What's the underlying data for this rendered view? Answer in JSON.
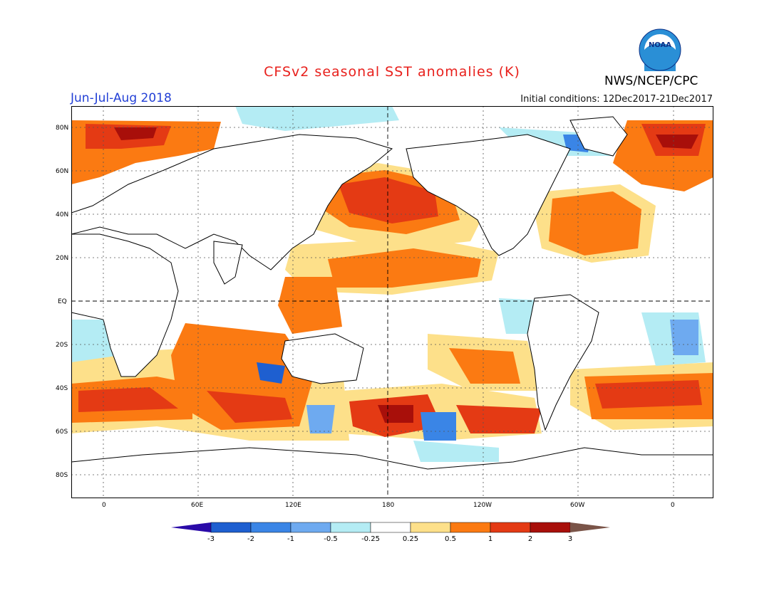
{
  "header": {
    "title": "CFSv2 seasonal SST anomalies (K)",
    "season": "Jun-Jul-Aug 2018",
    "initial_conditions": "Initial conditions: 12Dec2017-21Dec2017",
    "agency": "NWS/NCEP/CPC",
    "logo_text": "NOAA"
  },
  "axes": {
    "lat_labels": [
      "80N",
      "60N",
      "40N",
      "20N",
      "EQ",
      "20S",
      "40S",
      "60S",
      "80S"
    ],
    "lon_labels": [
      "0",
      "60E",
      "120E",
      "180",
      "120W",
      "60W",
      "0"
    ]
  },
  "colorbar": {
    "ticks": [
      "-3",
      "-2",
      "-1",
      "-0.5",
      "-0.25",
      "0.25",
      "0.5",
      "1",
      "2",
      "3"
    ],
    "colors": [
      "#2a0aa8",
      "#1e5fd0",
      "#3a85e6",
      "#6eaaf0",
      "#b4ecf4",
      "#ffffff",
      "#fde08a",
      "#fb7a12",
      "#e43a14",
      "#a80f0a",
      "#7a5448"
    ]
  }
}
